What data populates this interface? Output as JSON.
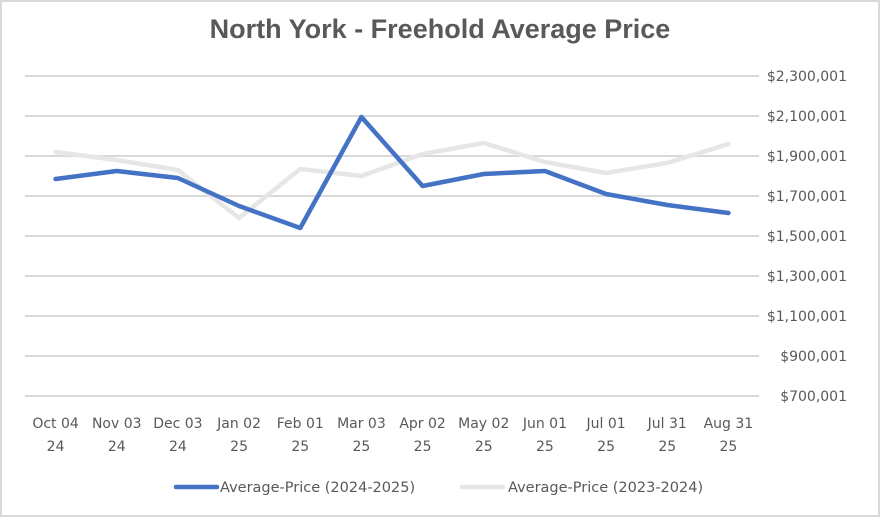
{
  "chart_data": {
    "type": "line",
    "title": "North York - Freehold Average Price",
    "xlabel": "",
    "ylabel": "",
    "ylim": [
      700001,
      2300001
    ],
    "y_ticks": [
      "$2,300,001",
      "$2,100,001",
      "$1,900,001",
      "$1,700,001",
      "$1,500,001",
      "$1,300,001",
      "$1,100,001",
      "$900,001",
      "$700,001"
    ],
    "y_tick_values": [
      2300001,
      2100001,
      1900001,
      1700001,
      1500001,
      1300001,
      1100001,
      900001,
      700001
    ],
    "y_axis_position": "right",
    "grid": true,
    "legend_position": "bottom",
    "categories": [
      [
        "Oct 04",
        "24"
      ],
      [
        "Nov 03",
        "24"
      ],
      [
        "Dec 03",
        "24"
      ],
      [
        "Jan 02",
        "25"
      ],
      [
        "Feb 01",
        "25"
      ],
      [
        "Mar 03",
        "25"
      ],
      [
        "Apr 02",
        "25"
      ],
      [
        "May 02",
        "25"
      ],
      [
        "Jun 01",
        "25"
      ],
      [
        "Jul 01",
        "25"
      ],
      [
        "Jul 31",
        "25"
      ],
      [
        "Aug 31",
        "25"
      ]
    ],
    "series": [
      {
        "name": "Average-Price (2024-2025)",
        "color": "#4472c4",
        "values": [
          1785000,
          1825000,
          1790000,
          1650000,
          1540000,
          2095000,
          1750000,
          1810000,
          1825000,
          1710000,
          1655000,
          1615000
        ]
      },
      {
        "name": "Average-Price (2023-2024)",
        "color": "#e7e6e6",
        "values": [
          1920000,
          1880000,
          1830000,
          1590000,
          1835000,
          1800000,
          1910000,
          1965000,
          1870000,
          1815000,
          1865000,
          1960000
        ]
      }
    ],
    "gridline_color": "#d9d9d9",
    "text_color": "#595959"
  }
}
